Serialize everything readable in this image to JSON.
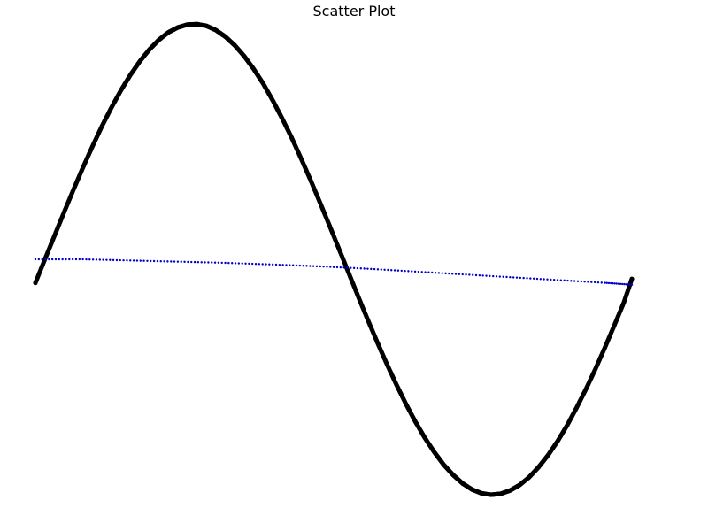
{
  "chart_data": {
    "type": "scatter",
    "title": "Scatter Plot",
    "xlabel": "",
    "ylabel": "",
    "grid": false,
    "xlim": [
      0,
      6.2832
    ],
    "ylim": [
      -1.0,
      1.0
    ],
    "axes_visible": false,
    "series": [
      {
        "color": "#000000",
        "marker": "filled-circle",
        "x": [
          0.0,
          0.1,
          0.2,
          0.3,
          0.4,
          0.5,
          0.6,
          0.7,
          0.8,
          0.9,
          1.0,
          1.1,
          1.2,
          1.3,
          1.4,
          1.5,
          1.6,
          1.7,
          1.8,
          1.9,
          2.0,
          2.1,
          2.2,
          2.3,
          2.4,
          2.5,
          2.6,
          2.7,
          2.8,
          2.9,
          3.0,
          3.1,
          3.2,
          3.3,
          3.4,
          3.5,
          3.6,
          3.7,
          3.8,
          3.9,
          4.0,
          4.1,
          4.2,
          4.3,
          4.4,
          4.5,
          4.6,
          4.7,
          4.8,
          4.9,
          5.0,
          5.1,
          5.2,
          5.3,
          5.4,
          5.5,
          5.6,
          5.7,
          5.8,
          5.9,
          6.0,
          6.1,
          6.2,
          6.2832
        ],
        "y": [
          -0.1,
          0.0,
          0.099,
          0.198,
          0.295,
          0.389,
          0.479,
          0.565,
          0.644,
          0.717,
          0.783,
          0.841,
          0.891,
          0.932,
          0.964,
          0.985,
          0.997,
          0.999,
          0.992,
          0.974,
          0.946,
          0.909,
          0.863,
          0.808,
          0.746,
          0.675,
          0.598,
          0.516,
          0.427,
          0.335,
          0.239,
          0.141,
          0.042,
          -0.058,
          -0.158,
          -0.256,
          -0.351,
          -0.443,
          -0.53,
          -0.612,
          -0.688,
          -0.757,
          -0.818,
          -0.872,
          -0.916,
          -0.952,
          -0.978,
          -0.994,
          -1.0,
          -0.996,
          -0.982,
          -0.959,
          -0.926,
          -0.883,
          -0.832,
          -0.773,
          -0.706,
          -0.631,
          -0.551,
          -0.465,
          -0.374,
          -0.279,
          -0.182,
          -0.083
        ]
      },
      {
        "color": "#0000cc",
        "marker": "small-circle",
        "x": [
          0.0,
          0.5,
          1.0,
          1.5,
          2.0,
          2.5,
          3.0,
          3.5,
          4.0,
          4.5,
          5.0,
          5.5,
          6.0,
          6.2832
        ],
        "y": [
          0.0,
          0.0,
          -0.005,
          -0.01,
          -0.015,
          -0.022,
          -0.03,
          -0.04,
          -0.052,
          -0.064,
          -0.076,
          -0.088,
          -0.1,
          -0.108
        ]
      }
    ]
  }
}
